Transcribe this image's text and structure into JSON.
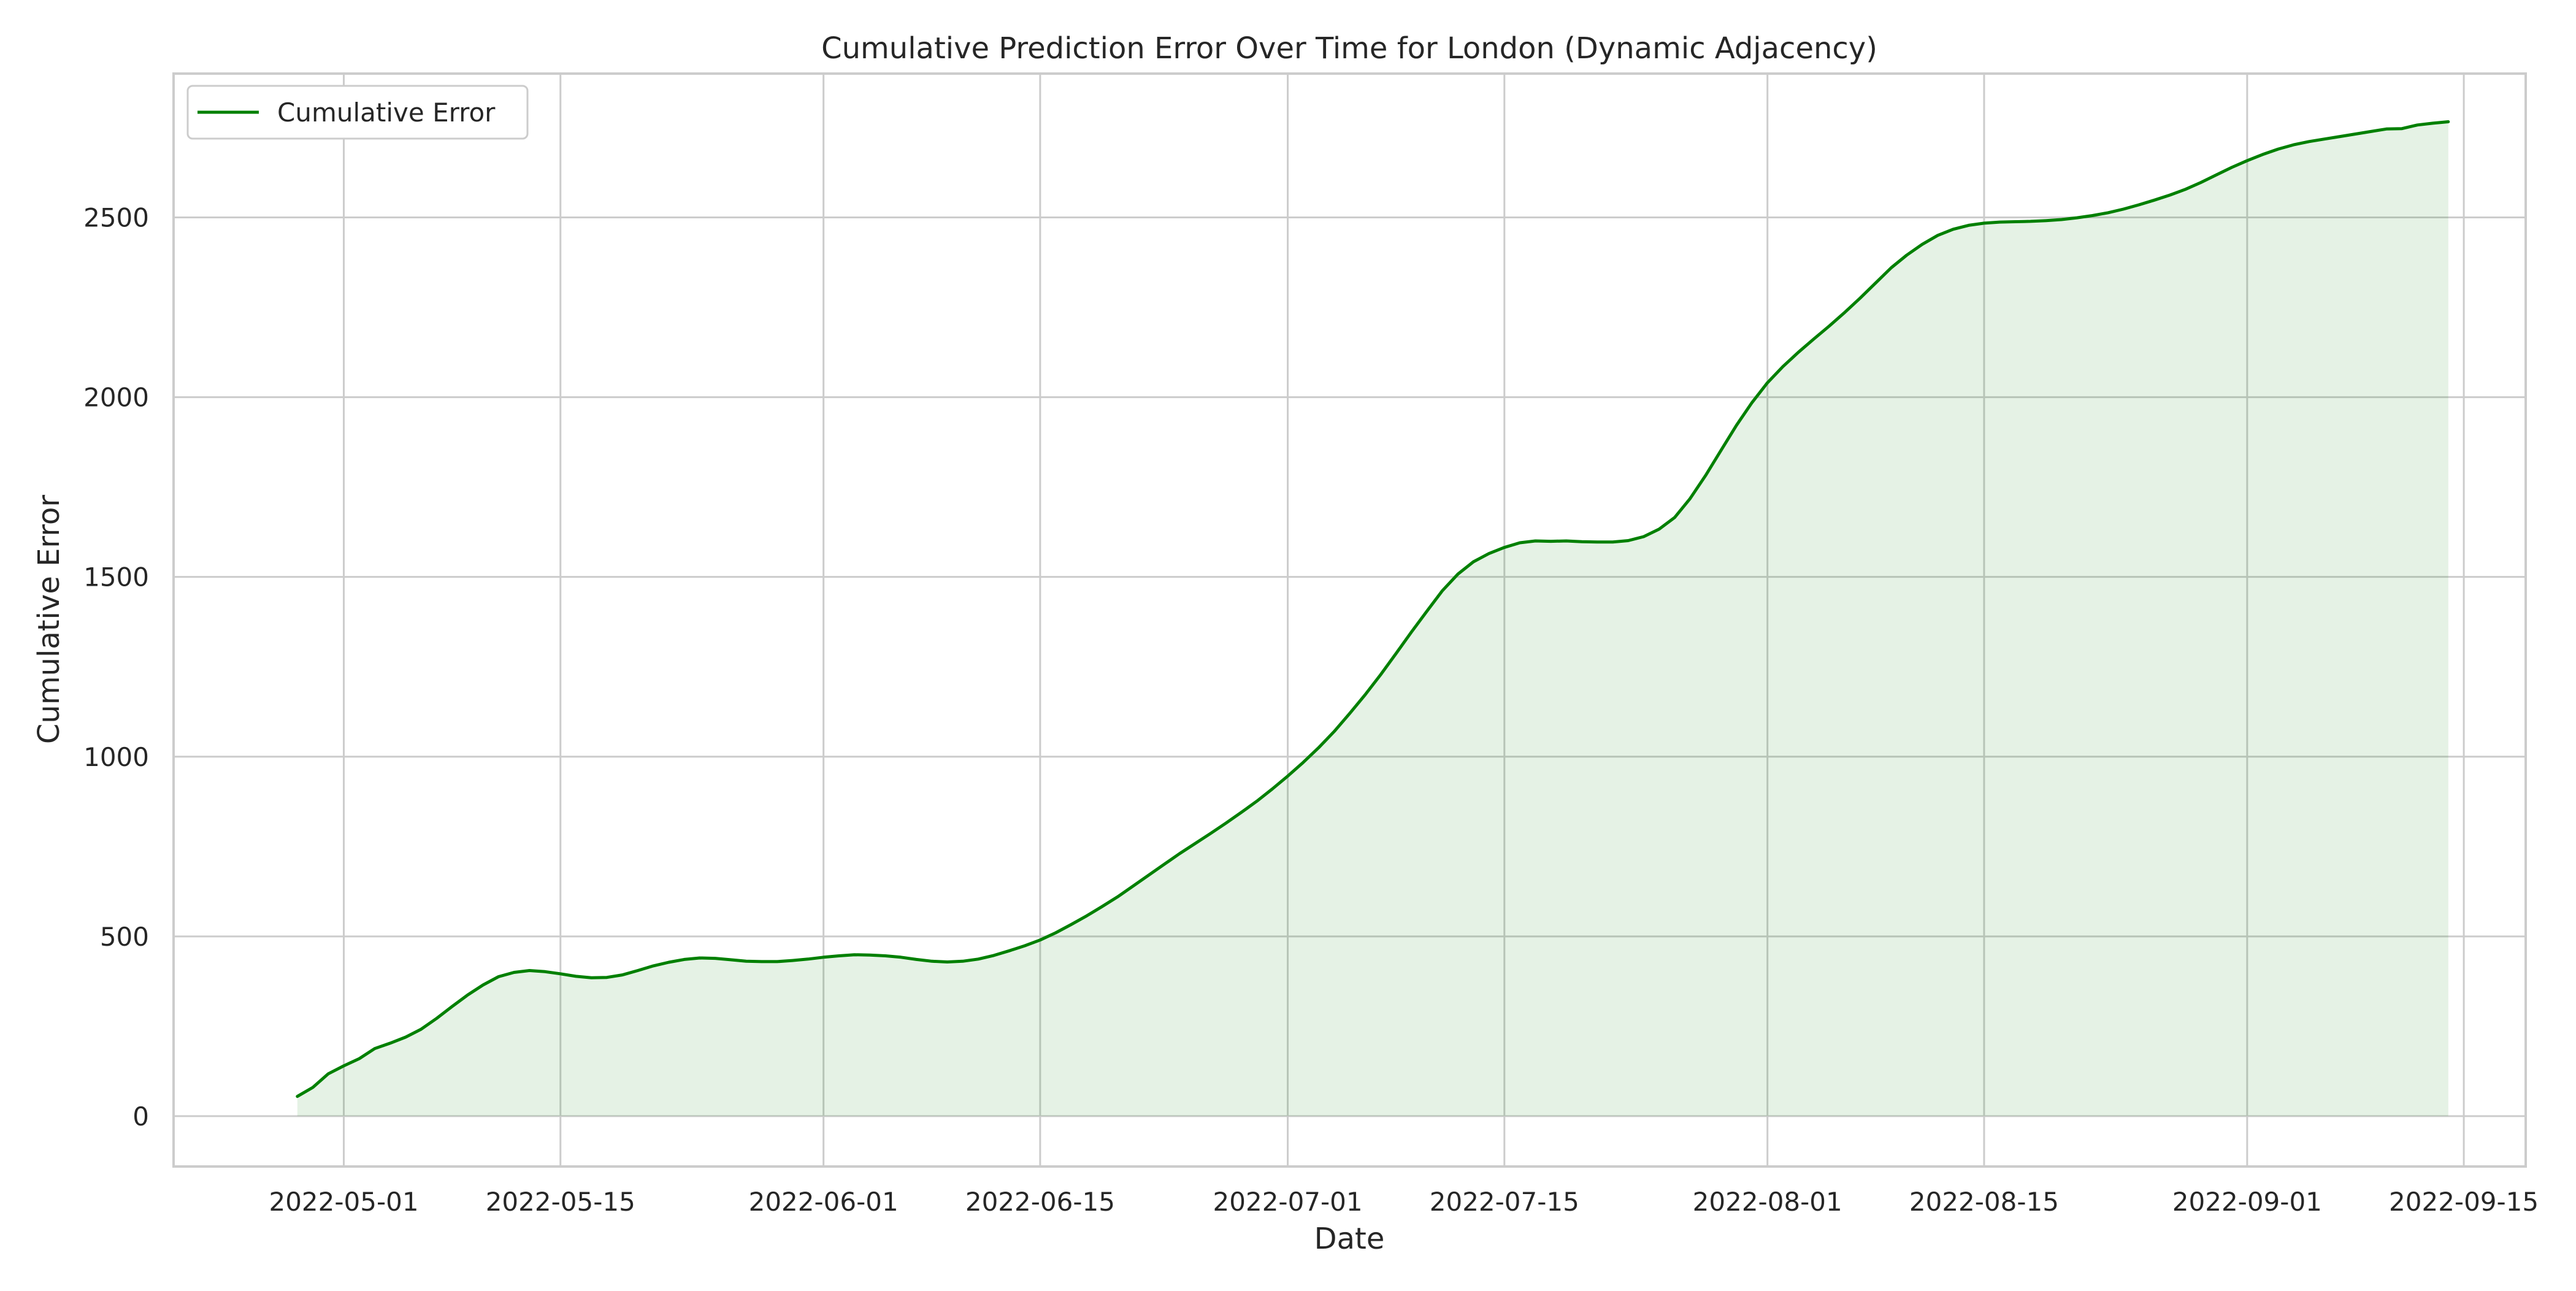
{
  "colors": {
    "line": "#008000",
    "fill": "#008000",
    "grid": "#cccccc",
    "frame": "#cccccc",
    "background": "#ffffff"
  },
  "chart_data": {
    "type": "area",
    "title": "Cumulative Prediction Error Over Time for London (Dynamic Adjacency)",
    "xlabel": "Date",
    "ylabel": "Cumulative Error",
    "x_ticks": [
      "2022-05-01",
      "2022-05-15",
      "2022-06-01",
      "2022-06-15",
      "2022-07-01",
      "2022-07-15",
      "2022-08-01",
      "2022-08-15",
      "2022-09-01",
      "2022-09-15"
    ],
    "y_ticks": [
      0,
      500,
      1000,
      1500,
      2000,
      2500
    ],
    "xlim": [
      "2022-04-20",
      "2022-09-19"
    ],
    "ylim": [
      -140,
      2900
    ],
    "grid": true,
    "legend_position": "top-left",
    "series": [
      {
        "name": "Cumulative Error",
        "fill_under": true,
        "points": [
          [
            "2022-04-28",
            55
          ],
          [
            "2022-04-29",
            80
          ],
          [
            "2022-04-30",
            118
          ],
          [
            "2022-05-01",
            140
          ],
          [
            "2022-05-02",
            160
          ],
          [
            "2022-05-03",
            188
          ],
          [
            "2022-05-04",
            203
          ],
          [
            "2022-05-05",
            220
          ],
          [
            "2022-05-06",
            242
          ],
          [
            "2022-05-07",
            272
          ],
          [
            "2022-05-08",
            305
          ],
          [
            "2022-05-09",
            337
          ],
          [
            "2022-05-10",
            365
          ],
          [
            "2022-05-11",
            388
          ],
          [
            "2022-05-12",
            400
          ],
          [
            "2022-05-13",
            405
          ],
          [
            "2022-05-14",
            402
          ],
          [
            "2022-05-15",
            396
          ],
          [
            "2022-05-16",
            389
          ],
          [
            "2022-05-17",
            385
          ],
          [
            "2022-05-18",
            386
          ],
          [
            "2022-05-19",
            393
          ],
          [
            "2022-05-20",
            405
          ],
          [
            "2022-05-21",
            418
          ],
          [
            "2022-05-22",
            428
          ],
          [
            "2022-05-23",
            436
          ],
          [
            "2022-05-24",
            440
          ],
          [
            "2022-05-25",
            439
          ],
          [
            "2022-05-26",
            435
          ],
          [
            "2022-05-27",
            431
          ],
          [
            "2022-05-28",
            430
          ],
          [
            "2022-05-29",
            430
          ],
          [
            "2022-05-30",
            433
          ],
          [
            "2022-05-31",
            437
          ],
          [
            "2022-06-01",
            442
          ],
          [
            "2022-06-02",
            446
          ],
          [
            "2022-06-03",
            449
          ],
          [
            "2022-06-04",
            448
          ],
          [
            "2022-06-05",
            446
          ],
          [
            "2022-06-06",
            442
          ],
          [
            "2022-06-07",
            436
          ],
          [
            "2022-06-08",
            431
          ],
          [
            "2022-06-09",
            429
          ],
          [
            "2022-06-10",
            431
          ],
          [
            "2022-06-11",
            437
          ],
          [
            "2022-06-12",
            447
          ],
          [
            "2022-06-13",
            460
          ],
          [
            "2022-06-14",
            474
          ],
          [
            "2022-06-15",
            490
          ],
          [
            "2022-06-16",
            510
          ],
          [
            "2022-06-17",
            533
          ],
          [
            "2022-06-18",
            557
          ],
          [
            "2022-06-19",
            583
          ],
          [
            "2022-06-20",
            610
          ],
          [
            "2022-06-21",
            640
          ],
          [
            "2022-06-22",
            670
          ],
          [
            "2022-06-23",
            700
          ],
          [
            "2022-06-24",
            730
          ],
          [
            "2022-06-25",
            758
          ],
          [
            "2022-06-26",
            786
          ],
          [
            "2022-06-27",
            815
          ],
          [
            "2022-06-28",
            845
          ],
          [
            "2022-06-29",
            876
          ],
          [
            "2022-06-30",
            910
          ],
          [
            "2022-07-01",
            946
          ],
          [
            "2022-07-02",
            984
          ],
          [
            "2022-07-03",
            1025
          ],
          [
            "2022-07-04",
            1070
          ],
          [
            "2022-07-05",
            1120
          ],
          [
            "2022-07-06",
            1172
          ],
          [
            "2022-07-07",
            1228
          ],
          [
            "2022-07-08",
            1287
          ],
          [
            "2022-07-09",
            1347
          ],
          [
            "2022-07-10",
            1405
          ],
          [
            "2022-07-11",
            1462
          ],
          [
            "2022-07-12",
            1508
          ],
          [
            "2022-07-13",
            1542
          ],
          [
            "2022-07-14",
            1565
          ],
          [
            "2022-07-15",
            1582
          ],
          [
            "2022-07-16",
            1595
          ],
          [
            "2022-07-17",
            1600
          ],
          [
            "2022-07-18",
            1599
          ],
          [
            "2022-07-19",
            1600
          ],
          [
            "2022-07-20",
            1598
          ],
          [
            "2022-07-21",
            1597
          ],
          [
            "2022-07-22",
            1597
          ],
          [
            "2022-07-23",
            1601
          ],
          [
            "2022-07-24",
            1612
          ],
          [
            "2022-07-25",
            1633
          ],
          [
            "2022-07-26",
            1665
          ],
          [
            "2022-07-27",
            1718
          ],
          [
            "2022-07-28",
            1782
          ],
          [
            "2022-07-29",
            1852
          ],
          [
            "2022-07-30",
            1922
          ],
          [
            "2022-07-31",
            1985
          ],
          [
            "2022-08-01",
            2040
          ],
          [
            "2022-08-02",
            2085
          ],
          [
            "2022-08-03",
            2125
          ],
          [
            "2022-08-04",
            2162
          ],
          [
            "2022-08-05",
            2198
          ],
          [
            "2022-08-06",
            2236
          ],
          [
            "2022-08-07",
            2276
          ],
          [
            "2022-08-08",
            2318
          ],
          [
            "2022-08-09",
            2360
          ],
          [
            "2022-08-10",
            2395
          ],
          [
            "2022-08-11",
            2425
          ],
          [
            "2022-08-12",
            2450
          ],
          [
            "2022-08-13",
            2467
          ],
          [
            "2022-08-14",
            2478
          ],
          [
            "2022-08-15",
            2484
          ],
          [
            "2022-08-16",
            2487
          ],
          [
            "2022-08-17",
            2488
          ],
          [
            "2022-08-18",
            2489
          ],
          [
            "2022-08-19",
            2491
          ],
          [
            "2022-08-20",
            2494
          ],
          [
            "2022-08-21",
            2499
          ],
          [
            "2022-08-22",
            2505
          ],
          [
            "2022-08-23",
            2513
          ],
          [
            "2022-08-24",
            2523
          ],
          [
            "2022-08-25",
            2535
          ],
          [
            "2022-08-26",
            2548
          ],
          [
            "2022-08-27",
            2562
          ],
          [
            "2022-08-28",
            2578
          ],
          [
            "2022-08-29",
            2597
          ],
          [
            "2022-08-30",
            2618
          ],
          [
            "2022-08-31",
            2639
          ],
          [
            "2022-09-01",
            2658
          ],
          [
            "2022-09-02",
            2675
          ],
          [
            "2022-09-03",
            2690
          ],
          [
            "2022-09-04",
            2702
          ],
          [
            "2022-09-05",
            2711
          ],
          [
            "2022-09-06",
            2718
          ],
          [
            "2022-09-07",
            2725
          ],
          [
            "2022-09-08",
            2732
          ],
          [
            "2022-09-09",
            2739
          ],
          [
            "2022-09-10",
            2746
          ],
          [
            "2022-09-11",
            2747
          ],
          [
            "2022-09-12",
            2757
          ],
          [
            "2022-09-13",
            2762
          ],
          [
            "2022-09-14",
            2766
          ]
        ]
      }
    ]
  }
}
